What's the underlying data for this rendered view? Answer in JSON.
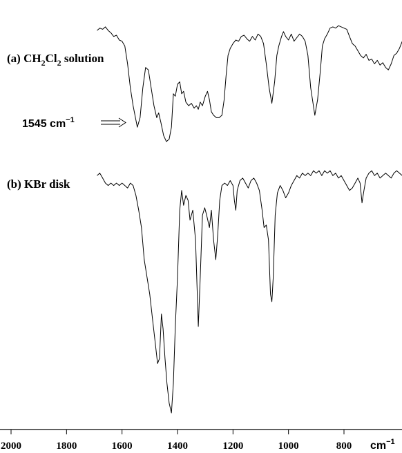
{
  "chart_data": {
    "type": "line",
    "title": "",
    "xlabel": "",
    "x_unit": "cm",
    "x_unit_exponent": "−1",
    "ylabel": "",
    "xlim": [
      2000,
      570
    ],
    "x_reversed": true,
    "ticks": [
      2000,
      1800,
      1600,
      1400,
      1200,
      1000,
      800
    ],
    "tick_labels": [
      "2000",
      "1800",
      "1600",
      "1400",
      "1200",
      "1000",
      "800"
    ],
    "grid": false,
    "series": [
      {
        "name_prefix": "(a) CH",
        "name_sub1": "2",
        "name_mid": "Cl",
        "name_sub2": "2",
        "name_suffix": " solution",
        "points": [
          [
            1690,
            0.93
          ],
          [
            1680,
            0.95
          ],
          [
            1670,
            0.94
          ],
          [
            1660,
            0.96
          ],
          [
            1650,
            0.93
          ],
          [
            1640,
            0.91
          ],
          [
            1630,
            0.88
          ],
          [
            1620,
            0.89
          ],
          [
            1610,
            0.85
          ],
          [
            1600,
            0.84
          ],
          [
            1590,
            0.8
          ],
          [
            1580,
            0.65
          ],
          [
            1570,
            0.45
          ],
          [
            1560,
            0.3
          ],
          [
            1545,
            0.12
          ],
          [
            1535,
            0.2
          ],
          [
            1525,
            0.45
          ],
          [
            1515,
            0.62
          ],
          [
            1505,
            0.6
          ],
          [
            1495,
            0.45
          ],
          [
            1485,
            0.3
          ],
          [
            1475,
            0.2
          ],
          [
            1468,
            0.24
          ],
          [
            1460,
            0.16
          ],
          [
            1450,
            0.05
          ],
          [
            1440,
            0.0
          ],
          [
            1430,
            0.02
          ],
          [
            1422,
            0.12
          ],
          [
            1415,
            0.4
          ],
          [
            1408,
            0.38
          ],
          [
            1400,
            0.48
          ],
          [
            1392,
            0.5
          ],
          [
            1385,
            0.4
          ],
          [
            1378,
            0.42
          ],
          [
            1370,
            0.33
          ],
          [
            1360,
            0.3
          ],
          [
            1350,
            0.32
          ],
          [
            1340,
            0.28
          ],
          [
            1332,
            0.3
          ],
          [
            1325,
            0.27
          ],
          [
            1318,
            0.33
          ],
          [
            1310,
            0.3
          ],
          [
            1300,
            0.38
          ],
          [
            1292,
            0.42
          ],
          [
            1285,
            0.35
          ],
          [
            1278,
            0.25
          ],
          [
            1270,
            0.22
          ],
          [
            1260,
            0.2
          ],
          [
            1250,
            0.2
          ],
          [
            1240,
            0.22
          ],
          [
            1232,
            0.35
          ],
          [
            1225,
            0.55
          ],
          [
            1218,
            0.72
          ],
          [
            1210,
            0.78
          ],
          [
            1200,
            0.82
          ],
          [
            1190,
            0.85
          ],
          [
            1180,
            0.84
          ],
          [
            1170,
            0.88
          ],
          [
            1160,
            0.89
          ],
          [
            1150,
            0.86
          ],
          [
            1140,
            0.84
          ],
          [
            1130,
            0.88
          ],
          [
            1120,
            0.85
          ],
          [
            1110,
            0.9
          ],
          [
            1100,
            0.88
          ],
          [
            1090,
            0.82
          ],
          [
            1080,
            0.65
          ],
          [
            1070,
            0.45
          ],
          [
            1060,
            0.32
          ],
          [
            1050,
            0.5
          ],
          [
            1042,
            0.72
          ],
          [
            1035,
            0.8
          ],
          [
            1025,
            0.88
          ],
          [
            1018,
            0.92
          ],
          [
            1010,
            0.88
          ],
          [
            1000,
            0.85
          ],
          [
            990,
            0.9
          ],
          [
            980,
            0.84
          ],
          [
            970,
            0.87
          ],
          [
            960,
            0.9
          ],
          [
            950,
            0.88
          ],
          [
            940,
            0.84
          ],
          [
            930,
            0.72
          ],
          [
            920,
            0.45
          ],
          [
            905,
            0.22
          ],
          [
            895,
            0.35
          ],
          [
            885,
            0.6
          ],
          [
            878,
            0.8
          ],
          [
            870,
            0.86
          ],
          [
            860,
            0.9
          ],
          [
            850,
            0.95
          ],
          [
            840,
            0.96
          ],
          [
            830,
            0.95
          ],
          [
            820,
            0.97
          ],
          [
            810,
            0.96
          ],
          [
            800,
            0.95
          ],
          [
            790,
            0.94
          ],
          [
            780,
            0.88
          ],
          [
            770,
            0.82
          ],
          [
            760,
            0.8
          ],
          [
            750,
            0.76
          ],
          [
            740,
            0.72
          ],
          [
            730,
            0.7
          ],
          [
            720,
            0.73
          ],
          [
            710,
            0.68
          ],
          [
            700,
            0.69
          ],
          [
            690,
            0.65
          ],
          [
            680,
            0.68
          ],
          [
            670,
            0.64
          ],
          [
            660,
            0.66
          ],
          [
            650,
            0.62
          ],
          [
            640,
            0.6
          ],
          [
            630,
            0.65
          ],
          [
            620,
            0.72
          ],
          [
            610,
            0.74
          ],
          [
            600,
            0.78
          ],
          [
            590,
            0.84
          ],
          [
            580,
            0.9
          ],
          [
            570,
            0.94
          ]
        ]
      },
      {
        "name": "(b) KBr disk",
        "points": [
          [
            1690,
            0.96
          ],
          [
            1680,
            0.97
          ],
          [
            1670,
            0.95
          ],
          [
            1660,
            0.93
          ],
          [
            1650,
            0.92
          ],
          [
            1640,
            0.93
          ],
          [
            1630,
            0.92
          ],
          [
            1620,
            0.93
          ],
          [
            1610,
            0.92
          ],
          [
            1600,
            0.93
          ],
          [
            1590,
            0.92
          ],
          [
            1580,
            0.91
          ],
          [
            1570,
            0.93
          ],
          [
            1560,
            0.92
          ],
          [
            1550,
            0.88
          ],
          [
            1540,
            0.82
          ],
          [
            1530,
            0.75
          ],
          [
            1520,
            0.62
          ],
          [
            1510,
            0.55
          ],
          [
            1500,
            0.48
          ],
          [
            1490,
            0.38
          ],
          [
            1480,
            0.28
          ],
          [
            1472,
            0.2
          ],
          [
            1465,
            0.22
          ],
          [
            1458,
            0.4
          ],
          [
            1452,
            0.34
          ],
          [
            1445,
            0.22
          ],
          [
            1438,
            0.12
          ],
          [
            1430,
            0.04
          ],
          [
            1422,
            0.0
          ],
          [
            1415,
            0.12
          ],
          [
            1408,
            0.35
          ],
          [
            1400,
            0.55
          ],
          [
            1392,
            0.82
          ],
          [
            1385,
            0.9
          ],
          [
            1378,
            0.84
          ],
          [
            1370,
            0.88
          ],
          [
            1362,
            0.86
          ],
          [
            1355,
            0.78
          ],
          [
            1345,
            0.82
          ],
          [
            1335,
            0.7
          ],
          [
            1325,
            0.35
          ],
          [
            1318,
            0.55
          ],
          [
            1310,
            0.8
          ],
          [
            1302,
            0.83
          ],
          [
            1295,
            0.8
          ],
          [
            1285,
            0.75
          ],
          [
            1278,
            0.82
          ],
          [
            1270,
            0.7
          ],
          [
            1262,
            0.62
          ],
          [
            1255,
            0.72
          ],
          [
            1248,
            0.86
          ],
          [
            1240,
            0.92
          ],
          [
            1230,
            0.93
          ],
          [
            1220,
            0.92
          ],
          [
            1210,
            0.94
          ],
          [
            1200,
            0.92
          ],
          [
            1195,
            0.86
          ],
          [
            1190,
            0.82
          ],
          [
            1185,
            0.9
          ],
          [
            1175,
            0.94
          ],
          [
            1165,
            0.95
          ],
          [
            1155,
            0.93
          ],
          [
            1145,
            0.91
          ],
          [
            1135,
            0.94
          ],
          [
            1125,
            0.95
          ],
          [
            1115,
            0.93
          ],
          [
            1105,
            0.9
          ],
          [
            1095,
            0.82
          ],
          [
            1088,
            0.75
          ],
          [
            1080,
            0.76
          ],
          [
            1072,
            0.7
          ],
          [
            1065,
            0.48
          ],
          [
            1060,
            0.45
          ],
          [
            1055,
            0.55
          ],
          [
            1048,
            0.8
          ],
          [
            1040,
            0.89
          ],
          [
            1030,
            0.92
          ],
          [
            1020,
            0.9
          ],
          [
            1010,
            0.87
          ],
          [
            1000,
            0.89
          ],
          [
            990,
            0.92
          ],
          [
            980,
            0.94
          ],
          [
            970,
            0.96
          ],
          [
            960,
            0.95
          ],
          [
            950,
            0.97
          ],
          [
            940,
            0.96
          ],
          [
            930,
            0.97
          ],
          [
            920,
            0.96
          ],
          [
            910,
            0.98
          ],
          [
            900,
            0.97
          ],
          [
            890,
            0.98
          ],
          [
            880,
            0.96
          ],
          [
            870,
            0.98
          ],
          [
            860,
            0.97
          ],
          [
            850,
            0.98
          ],
          [
            840,
            0.96
          ],
          [
            830,
            0.97
          ],
          [
            820,
            0.95
          ],
          [
            810,
            0.96
          ],
          [
            800,
            0.94
          ],
          [
            790,
            0.92
          ],
          [
            780,
            0.9
          ],
          [
            770,
            0.91
          ],
          [
            760,
            0.93
          ],
          [
            750,
            0.95
          ],
          [
            742,
            0.93
          ],
          [
            735,
            0.85
          ],
          [
            728,
            0.9
          ],
          [
            720,
            0.95
          ],
          [
            710,
            0.97
          ],
          [
            700,
            0.98
          ],
          [
            690,
            0.96
          ],
          [
            680,
            0.97
          ],
          [
            670,
            0.95
          ],
          [
            660,
            0.96
          ],
          [
            650,
            0.97
          ],
          [
            640,
            0.96
          ],
          [
            630,
            0.95
          ],
          [
            620,
            0.97
          ],
          [
            610,
            0.98
          ],
          [
            600,
            0.97
          ],
          [
            590,
            0.96
          ],
          [
            580,
            0.97
          ],
          [
            570,
            0.96
          ]
        ]
      }
    ],
    "annotation": {
      "value": "1545",
      "unit": "cm",
      "exponent": "−1",
      "x_data": 1545
    }
  }
}
